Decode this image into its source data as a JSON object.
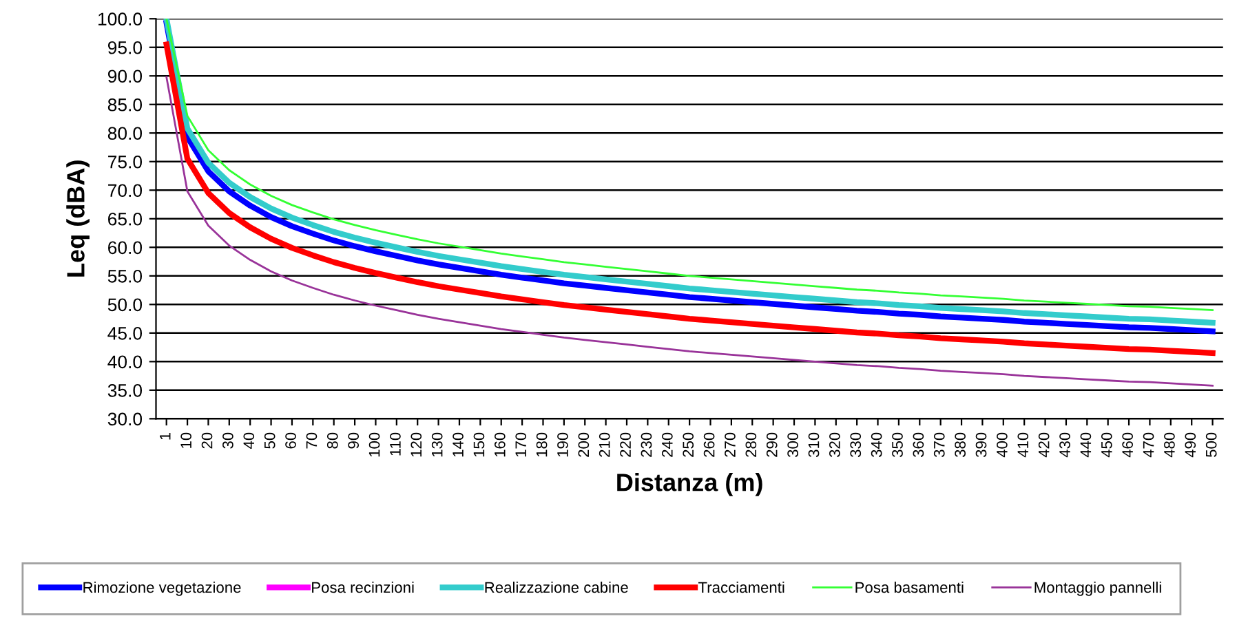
{
  "chart_data": {
    "type": "line",
    "xlabel": "Distanza (m)",
    "ylabel": "Leq (dBA)",
    "categories": [
      "1",
      "10",
      "20",
      "30",
      "40",
      "50",
      "60",
      "70",
      "80",
      "90",
      "100",
      "110",
      "120",
      "130",
      "140",
      "150",
      "160",
      "170",
      "180",
      "190",
      "200",
      "210",
      "220",
      "230",
      "240",
      "250",
      "260",
      "270",
      "280",
      "290",
      "300",
      "310",
      "320",
      "330",
      "340",
      "350",
      "360",
      "370",
      "380",
      "390",
      "400",
      "410",
      "420",
      "430",
      "440",
      "450",
      "460",
      "470",
      "480",
      "490",
      "500"
    ],
    "ylim": [
      30,
      100
    ],
    "yticks": [
      {
        "value": 30,
        "label": "30.0"
      },
      {
        "value": 35,
        "label": "35.0"
      },
      {
        "value": 40,
        "label": "40.0"
      },
      {
        "value": 45,
        "label": "45.0"
      },
      {
        "value": 50,
        "label": "50.0"
      },
      {
        "value": 55,
        "label": "55.0"
      },
      {
        "value": 60,
        "label": "60.0"
      },
      {
        "value": 65,
        "label": "65.0"
      },
      {
        "value": 70,
        "label": "70.0"
      },
      {
        "value": 75,
        "label": "75.0"
      },
      {
        "value": 80,
        "label": "80.0"
      },
      {
        "value": 85,
        "label": "85.0"
      },
      {
        "value": 90,
        "label": "90.0"
      },
      {
        "value": 95,
        "label": "95.0"
      },
      {
        "value": 100,
        "label": "100.0"
      }
    ],
    "grid": "y",
    "legend": "bottom",
    "marker": "none",
    "line_style": "solid",
    "series": [
      {
        "name": "Rimozione vegetazione",
        "color": "#0000ff",
        "values": [
          99.3,
          79.3,
          73.3,
          69.8,
          67.3,
          65.3,
          63.7,
          62.4,
          61.2,
          60.2,
          59.3,
          58.5,
          57.7,
          57.0,
          56.4,
          55.8,
          55.2,
          54.7,
          54.2,
          53.7,
          53.3,
          52.9,
          52.5,
          52.1,
          51.7,
          51.3,
          51.0,
          50.7,
          50.4,
          50.1,
          49.8,
          49.5,
          49.2,
          48.9,
          48.7,
          48.4,
          48.2,
          47.9,
          47.7,
          47.5,
          47.3,
          47.0,
          46.8,
          46.6,
          46.4,
          46.2,
          46.0,
          45.9,
          45.7,
          45.5,
          45.3
        ]
      },
      {
        "name": "Posa recinzioni",
        "color": "#ff00ff",
        "values": [
          null,
          null,
          null,
          null,
          null,
          null,
          null,
          null,
          null,
          null,
          null,
          null,
          null,
          null,
          null,
          null,
          null,
          null,
          null,
          null,
          null,
          null,
          null,
          null,
          null,
          null,
          null,
          null,
          null,
          null,
          null,
          null,
          null,
          null,
          null,
          null,
          null,
          null,
          null,
          null,
          null,
          null,
          null,
          null,
          null,
          null,
          null,
          null,
          null,
          null,
          null
        ]
      },
      {
        "name": "Realizzazione cabine",
        "color": "#33cccc",
        "values": [
          100,
          80.8,
          74.8,
          71.3,
          68.8,
          66.8,
          65.2,
          63.9,
          62.7,
          61.7,
          60.8,
          60.0,
          59.2,
          58.5,
          57.9,
          57.3,
          56.7,
          56.2,
          55.7,
          55.2,
          54.8,
          54.4,
          54.0,
          53.6,
          53.2,
          52.8,
          52.5,
          52.2,
          51.9,
          51.6,
          51.3,
          51.0,
          50.7,
          50.4,
          50.2,
          49.9,
          49.7,
          49.4,
          49.2,
          49.0,
          48.8,
          48.5,
          48.3,
          48.1,
          47.9,
          47.7,
          47.5,
          47.4,
          47.2,
          47.0,
          46.8
        ]
      },
      {
        "name": "Tracciamenti",
        "color": "#ff0000",
        "values": [
          95.5,
          75.5,
          69.5,
          66,
          63.5,
          61.5,
          59.9,
          58.6,
          57.4,
          56.4,
          55.5,
          54.7,
          53.9,
          53.2,
          52.6,
          52,
          51.4,
          50.9,
          50.4,
          49.9,
          49.5,
          49.1,
          48.7,
          48.3,
          47.9,
          47.5,
          47.2,
          46.9,
          46.6,
          46.3,
          46,
          45.7,
          45.4,
          45.1,
          44.9,
          44.6,
          44.4,
          44.1,
          43.9,
          43.7,
          43.5,
          43.2,
          43,
          42.8,
          42.6,
          42.4,
          42.2,
          42.1,
          41.9,
          41.7,
          41.5
        ]
      },
      {
        "name": "Posa basamenti",
        "color": "#33ff33",
        "values": [
          100,
          83,
          77,
          73.5,
          71,
          69,
          67.4,
          66.1,
          64.9,
          63.9,
          63,
          62.2,
          61.4,
          60.7,
          60.1,
          59.5,
          58.9,
          58.4,
          57.9,
          57.4,
          57,
          56.6,
          56.2,
          55.8,
          55.4,
          55,
          54.7,
          54.4,
          54.1,
          53.8,
          53.5,
          53.2,
          52.9,
          52.6,
          52.4,
          52.1,
          51.9,
          51.6,
          51.4,
          51.2,
          51,
          50.7,
          50.5,
          50.3,
          50.1,
          49.9,
          49.7,
          49.6,
          49.4,
          49.2,
          49
        ]
      },
      {
        "name": "Montaggio pannelli",
        "color": "#993399",
        "values": [
          89.8,
          69.8,
          63.8,
          60.3,
          57.8,
          55.8,
          54.2,
          52.9,
          51.7,
          50.7,
          49.8,
          49,
          48.2,
          47.5,
          46.9,
          46.3,
          45.7,
          45.2,
          44.7,
          44.2,
          43.8,
          43.4,
          43,
          42.6,
          42.2,
          41.8,
          41.5,
          41.2,
          40.9,
          40.6,
          40.3,
          40,
          39.7,
          39.4,
          39.2,
          38.9,
          38.7,
          38.4,
          38.2,
          38,
          37.8,
          37.5,
          37.3,
          37.1,
          36.9,
          36.7,
          36.5,
          36.4,
          36.2,
          36,
          35.8
        ]
      }
    ]
  }
}
